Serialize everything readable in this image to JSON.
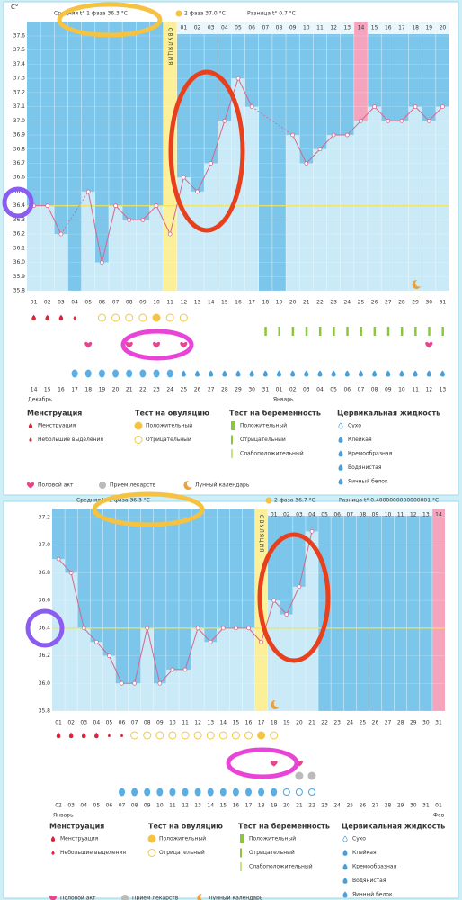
{
  "chart_data": [
    {
      "type": "line",
      "y_label": "C°",
      "header": {
        "phase1": "Средняя t° 1 фаза 36.3 °C",
        "phase2": "2 фаза 37.0 °C",
        "diff": "Разница t° 0.7 °C"
      },
      "ovulation_label": "ОВУЛЯЦИЯ",
      "ovulation_day": "11",
      "highlight_day": "25",
      "categories": [
        "01",
        "02",
        "03",
        "04",
        "05",
        "06",
        "07",
        "08",
        "09",
        "10",
        "11",
        "12",
        "13",
        "14",
        "15",
        "16",
        "17",
        "18",
        "19",
        "20",
        "21",
        "22",
        "23",
        "24",
        "25",
        "26",
        "27",
        "28",
        "29",
        "30",
        "31"
      ],
      "dpo": [
        null,
        null,
        null,
        null,
        null,
        null,
        null,
        null,
        null,
        null,
        null,
        "01",
        "02",
        "03",
        "04",
        "05",
        "06",
        "07",
        "08",
        "09",
        "10",
        "11",
        "12",
        "13",
        "14",
        "15",
        "16",
        "17",
        "18",
        "19",
        "20"
      ],
      "values": [
        36.4,
        36.4,
        36.2,
        null,
        36.5,
        36.0,
        36.4,
        36.3,
        36.3,
        36.4,
        36.2,
        36.6,
        36.5,
        36.7,
        37.0,
        37.3,
        37.1,
        null,
        null,
        36.9,
        36.7,
        36.8,
        36.9,
        36.9,
        37.0,
        37.1,
        37.0,
        37.0,
        37.1,
        37.0,
        37.1
      ],
      "color": "#d4678a",
      "coverline": 36.4,
      "ylim": [
        35.8,
        37.6
      ],
      "yticks": [
        35.8,
        35.9,
        {
          "value": 36,
          "label": "36.0"
        },
        36.1,
        36.2,
        36.3,
        36.4,
        36.5,
        36.6,
        36.7,
        36.8,
        36.9,
        {
          "value": 37,
          "label": "37.0"
        },
        37.1,
        37.2,
        37.3,
        37.4,
        37.5,
        37.6
      ],
      "markers": {
        "menstruation": {
          "01": "heavy",
          "02": "heavy",
          "03": "heavy",
          "04": "light"
        },
        "ovulation_test": {
          "06": "negative",
          "07": "negative",
          "08": "negative",
          "09": "negative",
          "10": "positive",
          "11": "negative",
          "12": "negative"
        },
        "pregnancy_test": {
          "18": "negative",
          "19": "negative",
          "20": "negative",
          "21": "negative",
          "22": "negative",
          "23": "negative",
          "24": "negative",
          "25": "negative",
          "26": "negative",
          "27": "negative",
          "28": "negative",
          "29": "negative",
          "30": "negative",
          "31": "negative"
        },
        "intercourse": [
          "05",
          "08",
          "10",
          "12",
          "30"
        ],
        "medication": [],
        "moon": [
          "29"
        ],
        "cervical_fluid": {
          "04": "egg",
          "05": "egg",
          "06": "egg",
          "07": "egg",
          "08": "egg",
          "09": "egg",
          "10": "egg",
          "11": "egg",
          "12": "creamy",
          "13": "creamy",
          "14": "creamy",
          "15": "creamy",
          "16": "creamy",
          "17": "creamy",
          "18": "creamy",
          "19": "creamy",
          "20": "creamy",
          "21": "creamy",
          "22": "creamy",
          "23": "creamy",
          "24": "creamy",
          "25": "creamy",
          "26": "creamy",
          "27": "creamy",
          "28": "creamy",
          "29": "creamy",
          "30": "creamy",
          "31": "creamy"
        }
      },
      "dates": [
        "14",
        "15",
        "16",
        "17",
        "18",
        "19",
        "20",
        "21",
        "22",
        "23",
        "24",
        "25",
        "26",
        "27",
        "28",
        "29",
        "30",
        "31",
        "01",
        "02",
        "03",
        "04",
        "05",
        "06",
        "07",
        "08",
        "09",
        "10",
        "11",
        "12",
        "13"
      ],
      "months": [
        "Декабрь",
        "Январь"
      ],
      "legend": {
        "groups": [
          {
            "title": "Менструация",
            "items": [
              "Менструация",
              "Небольшие выделения"
            ]
          },
          {
            "title": "Тест на овуляцию",
            "items": [
              "Положительный",
              "Отрицательный"
            ]
          },
          {
            "title": "Тест на беременность",
            "items": [
              "Положительный",
              "Отрицательный",
              "Слабоположительный"
            ]
          },
          {
            "title": "Цервикальная жидкость",
            "items": [
              "Сухо",
              "Клейкая",
              "Кремообразная",
              "Водянистая",
              "Яичный белок"
            ]
          }
        ],
        "other": [
          "Половой акт",
          "Прием лекарств",
          "Лунный календарь"
        ]
      }
    },
    {
      "type": "line",
      "header": {
        "phase1": "Средняя t° 1 фаза 36.3 °C",
        "phase2": "2 фаза 36.7 °C",
        "diff": "Разница t° 0.4000000000000001 °C"
      },
      "ovulation_label": "ОВУЛЯЦИЯ",
      "ovulation_day": "17",
      "highlight_day": "31",
      "categories": [
        "01",
        "02",
        "03",
        "04",
        "05",
        "06",
        "07",
        "08",
        "09",
        "10",
        "11",
        "12",
        "13",
        "14",
        "15",
        "16",
        "17",
        "18",
        "19",
        "20",
        "21",
        "22",
        "23",
        "24",
        "25",
        "26",
        "27",
        "28",
        "29",
        "30",
        "31"
      ],
      "dpo": [
        null,
        null,
        null,
        null,
        null,
        null,
        null,
        null,
        null,
        null,
        null,
        null,
        null,
        null,
        null,
        null,
        null,
        "01",
        "02",
        "03",
        "04",
        "05",
        "06",
        "07",
        "08",
        "09",
        "10",
        "11",
        "12",
        "13",
        "14"
      ],
      "values": [
        36.9,
        36.8,
        36.4,
        36.3,
        36.2,
        36.0,
        36.0,
        36.4,
        36.0,
        36.1,
        36.1,
        36.4,
        36.3,
        36.4,
        36.4,
        36.4,
        36.3,
        36.6,
        36.5,
        36.7,
        37.1,
        null,
        null,
        null,
        null,
        null,
        null,
        null,
        null,
        null,
        null
      ],
      "color": "#d4678a",
      "coverline": 36.4,
      "ylim": [
        35.8,
        37.2
      ],
      "yticks": [
        35.8,
        {
          "value": 36,
          "label": "36.0"
        },
        36.2,
        36.4,
        36.6,
        36.8,
        {
          "value": 37,
          "label": "37.0"
        },
        37.2
      ],
      "markers": {
        "menstruation": {
          "01": "heavy",
          "02": "heavy",
          "03": "heavy",
          "04": "heavy",
          "05": "light",
          "06": "light"
        },
        "ovulation_test": {
          "07": "negative",
          "08": "negative",
          "09": "negative",
          "10": "negative",
          "11": "negative",
          "12": "negative",
          "13": "negative",
          "14": "negative",
          "15": "negative",
          "16": "negative",
          "17": "positive",
          "18": "negative"
        },
        "pregnancy_test": {},
        "intercourse": [
          "18",
          "20"
        ],
        "medication": [
          "20",
          "21"
        ],
        "moon": [
          "18"
        ],
        "cervical_fluid": {
          "06": "egg",
          "07": "egg",
          "08": "egg",
          "09": "egg",
          "10": "egg",
          "11": "egg",
          "12": "egg",
          "13": "egg",
          "14": "egg",
          "15": "egg",
          "16": "egg",
          "17": "egg",
          "18": "egg",
          "19": "dry",
          "20": "dry",
          "21": "dry"
        }
      },
      "dates": [
        "02",
        "03",
        "04",
        "05",
        "06",
        "07",
        "08",
        "09",
        "10",
        "11",
        "12",
        "13",
        "14",
        "15",
        "16",
        "17",
        "18",
        "19",
        "20",
        "21",
        "22",
        "23",
        "24",
        "25",
        "26",
        "27",
        "28",
        "29",
        "30",
        "31",
        "01"
      ],
      "months": [
        "Январь",
        "Фев"
      ],
      "legend": {
        "groups": [
          {
            "title": "Менструация",
            "items": [
              "Менструация",
              "Небольшие выделения"
            ]
          },
          {
            "title": "Тест на овуляцию",
            "items": [
              "Положительный",
              "Отрицательный"
            ]
          },
          {
            "title": "Тест на беременность",
            "items": [
              "Положительный",
              "Отрицательный",
              "Слабоположительный"
            ]
          },
          {
            "title": "Цервикальная жидкость",
            "items": [
              "Сухо",
              "Клейкая",
              "Кремообразная",
              "Водянистая",
              "Яичный белок"
            ]
          }
        ],
        "other": [
          "Половой акт",
          "Прием лекарств",
          "Лунный календарь"
        ]
      }
    }
  ]
}
